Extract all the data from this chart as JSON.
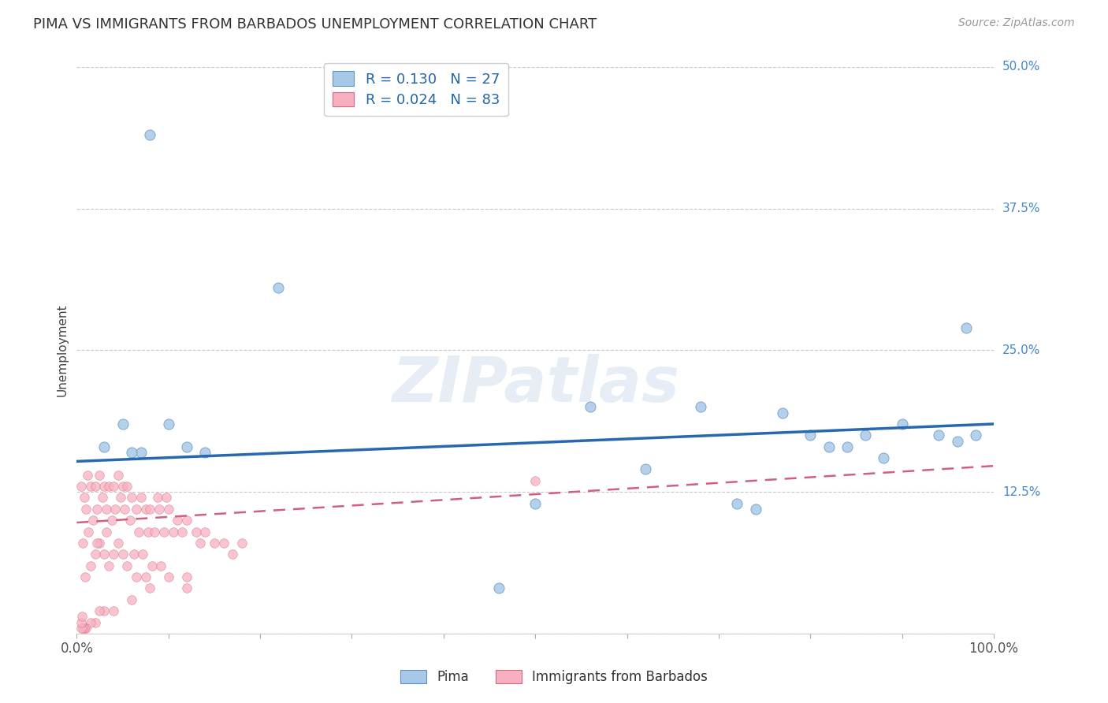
{
  "title": "PIMA VS IMMIGRANTS FROM BARBADOS UNEMPLOYMENT CORRELATION CHART",
  "source": "Source: ZipAtlas.com",
  "ylabel": "Unemployment",
  "xlim": [
    0,
    1.0
  ],
  "ylim": [
    0,
    0.5
  ],
  "background_color": "#ffffff",
  "grid_color": "#c8c8c8",
  "legend_R_blue": "0.130",
  "legend_N_blue": "27",
  "legend_R_pink": "0.024",
  "legend_N_pink": "83",
  "blue_color": "#a8c8e8",
  "blue_edge_color": "#6090c0",
  "pink_color": "#f8b0c0",
  "pink_edge_color": "#d06880",
  "blue_line_color": "#2868b0",
  "pink_line_color": "#d06080",
  "pima_x": [
    0.08,
    0.22,
    0.97,
    0.46,
    0.68,
    0.77,
    0.82,
    0.86,
    0.03,
    0.05,
    0.07,
    0.1,
    0.14,
    0.56,
    0.72,
    0.8,
    0.84,
    0.88,
    0.9,
    0.94,
    0.96,
    0.98,
    0.5,
    0.62,
    0.74,
    0.06,
    0.12
  ],
  "pima_y": [
    0.44,
    0.305,
    0.27,
    0.04,
    0.2,
    0.195,
    0.165,
    0.175,
    0.165,
    0.185,
    0.16,
    0.185,
    0.16,
    0.2,
    0.115,
    0.175,
    0.165,
    0.155,
    0.185,
    0.175,
    0.17,
    0.175,
    0.115,
    0.145,
    0.11,
    0.16,
    0.165
  ],
  "barbados_x": [
    0.005,
    0.007,
    0.008,
    0.009,
    0.01,
    0.012,
    0.013,
    0.015,
    0.015,
    0.018,
    0.02,
    0.02,
    0.022,
    0.025,
    0.025,
    0.028,
    0.03,
    0.03,
    0.032,
    0.035,
    0.035,
    0.038,
    0.04,
    0.04,
    0.042,
    0.045,
    0.045,
    0.048,
    0.05,
    0.05,
    0.052,
    0.055,
    0.055,
    0.058,
    0.06,
    0.062,
    0.065,
    0.065,
    0.068,
    0.07,
    0.072,
    0.075,
    0.075,
    0.078,
    0.08,
    0.082,
    0.085,
    0.088,
    0.09,
    0.092,
    0.095,
    0.098,
    0.1,
    0.1,
    0.105,
    0.11,
    0.115,
    0.12,
    0.12,
    0.13,
    0.135,
    0.14,
    0.15,
    0.16,
    0.17,
    0.18,
    0.12,
    0.08,
    0.06,
    0.04,
    0.03,
    0.025,
    0.02,
    0.015,
    0.01,
    0.008,
    0.007,
    0.005,
    0.005,
    0.006,
    0.022,
    0.032,
    0.5
  ],
  "barbados_y": [
    0.13,
    0.08,
    0.12,
    0.05,
    0.11,
    0.14,
    0.09,
    0.13,
    0.06,
    0.1,
    0.13,
    0.07,
    0.11,
    0.14,
    0.08,
    0.12,
    0.13,
    0.07,
    0.11,
    0.13,
    0.06,
    0.1,
    0.13,
    0.07,
    0.11,
    0.14,
    0.08,
    0.12,
    0.13,
    0.07,
    0.11,
    0.13,
    0.06,
    0.1,
    0.12,
    0.07,
    0.11,
    0.05,
    0.09,
    0.12,
    0.07,
    0.11,
    0.05,
    0.09,
    0.11,
    0.06,
    0.09,
    0.12,
    0.11,
    0.06,
    0.09,
    0.12,
    0.11,
    0.05,
    0.09,
    0.1,
    0.09,
    0.1,
    0.05,
    0.09,
    0.08,
    0.09,
    0.08,
    0.08,
    0.07,
    0.08,
    0.04,
    0.04,
    0.03,
    0.02,
    0.02,
    0.02,
    0.01,
    0.01,
    0.005,
    0.005,
    0.005,
    0.005,
    0.01,
    0.015,
    0.08,
    0.09,
    0.135
  ],
  "blue_trend_x": [
    0.0,
    1.0
  ],
  "blue_trend_y": [
    0.152,
    0.185
  ],
  "pink_trend_x": [
    0.0,
    1.0
  ],
  "pink_trend_y": [
    0.098,
    0.148
  ]
}
